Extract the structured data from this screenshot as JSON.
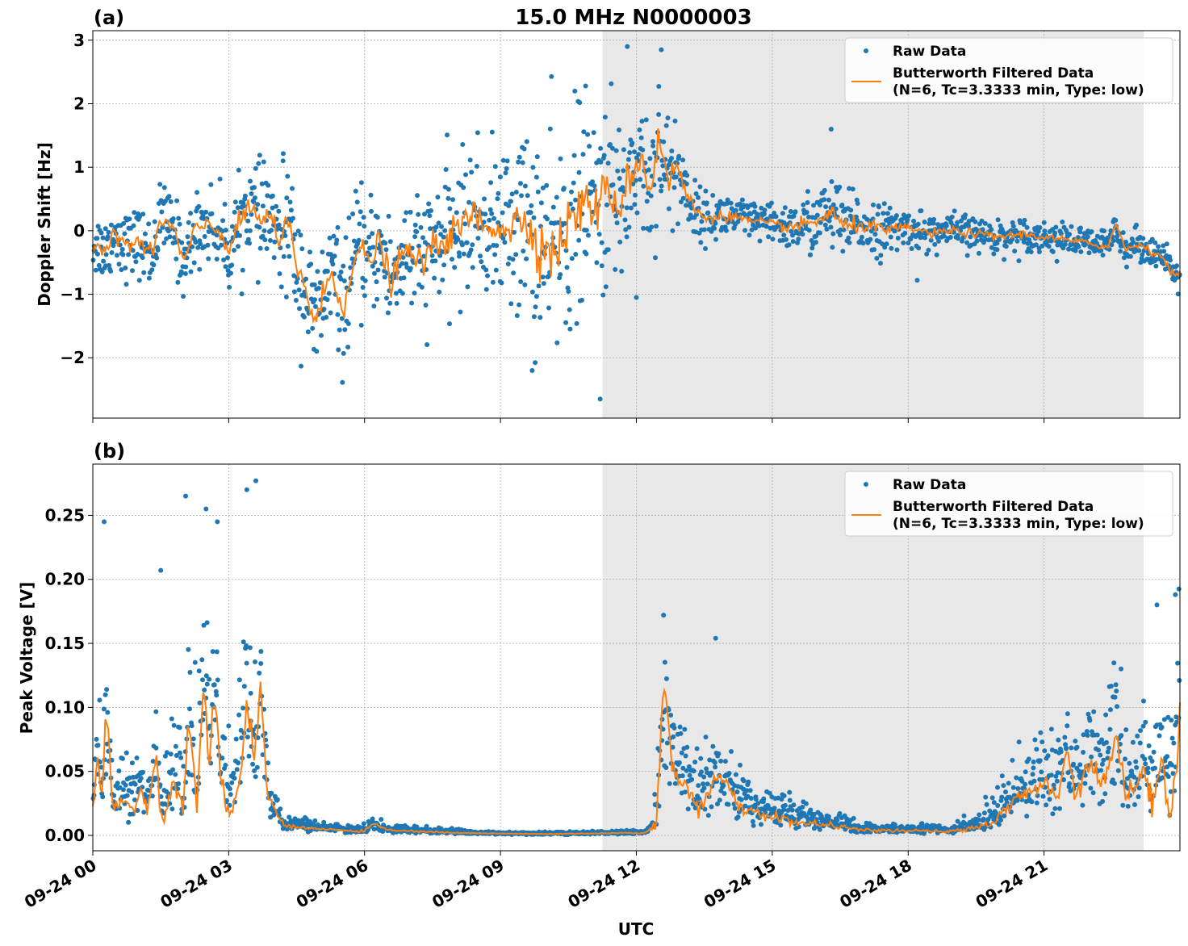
{
  "title": "15.0 MHz N0000003",
  "xlabel": "UTC",
  "x_ticks": [
    "09-24 00",
    "09-24 03",
    "09-24 06",
    "09-24 09",
    "09-24 12",
    "09-24 15",
    "09-24 18",
    "09-24 21"
  ],
  "shaded_region_hours": [
    11.25,
    23.2
  ],
  "legend": {
    "raw": "Raw Data",
    "filtered_line1": "Butterworth Filtered Data",
    "filtered_line2": "(N=6, Tc=3.3333 min, Type: low)"
  },
  "colors": {
    "raw": "#1f77b4",
    "filtered": "#ff7f0e",
    "shade": "#e8e8e8",
    "grid": "#b0b0b0"
  },
  "chart_data": [
    {
      "panel_label": "(a)",
      "type": "scatter",
      "ylabel": "Doppler Shift [Hz]",
      "xlim_hours": [
        0,
        24
      ],
      "ylim": [
        -2.95,
        3.15
      ],
      "y_ticks": [
        3,
        2,
        1,
        0,
        -1,
        -2
      ],
      "y_tick_labels": [
        "3",
        "2",
        "1",
        "0",
        "−1",
        "−2"
      ],
      "grid": true,
      "legend_position": "top-right",
      "filtered_keypoints": [
        [
          0,
          -0.2
        ],
        [
          0.3,
          -0.3
        ],
        [
          0.5,
          -0.05
        ],
        [
          0.8,
          -0.25
        ],
        [
          1.0,
          -0.15
        ],
        [
          1.3,
          -0.4
        ],
        [
          1.5,
          0.2
        ],
        [
          1.8,
          0.0
        ],
        [
          2.0,
          -0.5
        ],
        [
          2.3,
          0.05
        ],
        [
          2.6,
          0.1
        ],
        [
          2.9,
          -0.1
        ],
        [
          3.0,
          -0.4
        ],
        [
          3.1,
          -0.1
        ],
        [
          3.3,
          0.2
        ],
        [
          3.5,
          0.4
        ],
        [
          3.7,
          0.1
        ],
        [
          3.9,
          0.3
        ],
        [
          4.1,
          -0.3
        ],
        [
          4.3,
          0.15
        ],
        [
          4.5,
          -0.5
        ],
        [
          4.7,
          -0.9
        ],
        [
          4.9,
          -1.5
        ],
        [
          5.1,
          -1.0
        ],
        [
          5.3,
          -0.6
        ],
        [
          5.5,
          -1.3
        ],
        [
          5.7,
          -0.6
        ],
        [
          5.9,
          -0.3
        ],
        [
          6.1,
          -0.5
        ],
        [
          6.3,
          -0.2
        ],
        [
          6.6,
          -0.8
        ],
        [
          6.9,
          -0.3
        ],
        [
          7.2,
          -0.5
        ],
        [
          7.5,
          -0.3
        ],
        [
          7.8,
          -0.1
        ],
        [
          8.1,
          0.0
        ],
        [
          8.4,
          0.3
        ],
        [
          8.6,
          0.05
        ],
        [
          8.9,
          0.1
        ],
        [
          9.2,
          0.05
        ],
        [
          9.5,
          0.2
        ],
        [
          9.8,
          -0.1
        ],
        [
          10.1,
          -0.4
        ],
        [
          10.3,
          -0.2
        ],
        [
          10.6,
          0.2
        ],
        [
          10.9,
          0.5
        ],
        [
          11.1,
          0.3
        ],
        [
          11.3,
          0.6
        ],
        [
          11.6,
          0.4
        ],
        [
          11.9,
          0.9
        ],
        [
          12.1,
          1.2
        ],
        [
          12.3,
          0.6
        ],
        [
          12.5,
          1.5
        ],
        [
          12.7,
          0.8
        ],
        [
          12.9,
          1.0
        ],
        [
          13.1,
          0.6
        ],
        [
          13.3,
          0.3
        ],
        [
          13.6,
          0.2
        ],
        [
          14,
          0.25
        ],
        [
          14.5,
          0.15
        ],
        [
          15,
          0.1
        ],
        [
          15.5,
          0.05
        ],
        [
          16,
          0.15
        ],
        [
          16.3,
          0.3
        ],
        [
          16.6,
          0.05
        ],
        [
          17,
          0.1
        ],
        [
          17.5,
          0.0
        ],
        [
          18,
          0.05
        ],
        [
          18.5,
          -0.05
        ],
        [
          19,
          0.0
        ],
        [
          19.5,
          -0.05
        ],
        [
          20,
          -0.1
        ],
        [
          20.5,
          -0.05
        ],
        [
          21,
          -0.1
        ],
        [
          21.5,
          -0.15
        ],
        [
          22,
          -0.2
        ],
        [
          22.4,
          -0.25
        ],
        [
          22.6,
          0.1
        ],
        [
          22.8,
          -0.3
        ],
        [
          23.1,
          -0.2
        ],
        [
          23.3,
          -0.3
        ],
        [
          23.6,
          -0.4
        ],
        [
          23.85,
          -0.7
        ],
        [
          24,
          -0.7
        ]
      ],
      "scatter_noise_keypoints": [
        [
          0,
          0.25
        ],
        [
          3,
          0.3
        ],
        [
          4.5,
          0.5
        ],
        [
          6,
          0.45
        ],
        [
          7.5,
          0.5
        ],
        [
          9,
          0.6
        ],
        [
          10,
          0.9
        ],
        [
          11,
          0.8
        ],
        [
          12,
          0.6
        ],
        [
          12.8,
          0.5
        ],
        [
          13.3,
          0.2
        ],
        [
          15,
          0.15
        ],
        [
          16.3,
          0.3
        ],
        [
          18,
          0.15
        ],
        [
          21,
          0.12
        ],
        [
          24,
          0.12
        ]
      ],
      "outliers": [
        [
          11.2,
          -2.65
        ],
        [
          12.55,
          2.85
        ],
        [
          11.8,
          2.9
        ],
        [
          9.7,
          -2.2
        ],
        [
          12.0,
          -1.05
        ],
        [
          16.3,
          1.6
        ],
        [
          18.2,
          -0.78
        ],
        [
          4.2,
          1.1
        ]
      ]
    },
    {
      "panel_label": "(b)",
      "type": "scatter",
      "ylabel": "Peak Voltage [V]",
      "xlim_hours": [
        0,
        24
      ],
      "ylim": [
        -0.012,
        0.29
      ],
      "y_ticks": [
        0.25,
        0.2,
        0.15,
        0.1,
        0.05,
        0.0
      ],
      "y_tick_labels": [
        "0.25",
        "0.20",
        "0.15",
        "0.10",
        "0.05",
        "0.00"
      ],
      "grid": true,
      "legend_position": "top-right",
      "filtered_keypoints": [
        [
          0,
          0.02
        ],
        [
          0.1,
          0.06
        ],
        [
          0.2,
          0.03
        ],
        [
          0.3,
          0.1
        ],
        [
          0.45,
          0.02
        ],
        [
          0.7,
          0.03
        ],
        [
          0.9,
          0.015
        ],
        [
          1.0,
          0.04
        ],
        [
          1.2,
          0.02
        ],
        [
          1.4,
          0.06
        ],
        [
          1.55,
          0.01
        ],
        [
          1.8,
          0.04
        ],
        [
          2.0,
          0.02
        ],
        [
          2.1,
          0.09
        ],
        [
          2.3,
          0.03
        ],
        [
          2.45,
          0.12
        ],
        [
          2.55,
          0.06
        ],
        [
          2.7,
          0.11
        ],
        [
          2.8,
          0.05
        ],
        [
          2.95,
          0.02
        ],
        [
          3.1,
          0.015
        ],
        [
          3.3,
          0.05
        ],
        [
          3.4,
          0.11
        ],
        [
          3.55,
          0.06
        ],
        [
          3.7,
          0.12
        ],
        [
          3.85,
          0.03
        ],
        [
          4.2,
          0.008
        ],
        [
          5,
          0.005
        ],
        [
          6,
          0.003
        ],
        [
          6.2,
          0.01
        ],
        [
          6.5,
          0.004
        ],
        [
          8,
          0.002
        ],
        [
          10,
          0.001
        ],
        [
          12.2,
          0.002
        ],
        [
          12.45,
          0.01
        ],
        [
          12.6,
          0.12
        ],
        [
          12.8,
          0.05
        ],
        [
          13.1,
          0.04
        ],
        [
          13.4,
          0.02
        ],
        [
          13.8,
          0.05
        ],
        [
          14.3,
          0.02
        ],
        [
          15,
          0.015
        ],
        [
          15.5,
          0.01
        ],
        [
          16.3,
          0.008
        ],
        [
          17,
          0.004
        ],
        [
          19,
          0.003
        ],
        [
          19.9,
          0.01
        ],
        [
          20.1,
          0.02
        ],
        [
          20.5,
          0.03
        ],
        [
          21,
          0.04
        ],
        [
          21.3,
          0.03
        ],
        [
          21.5,
          0.07
        ],
        [
          21.7,
          0.03
        ],
        [
          22.0,
          0.06
        ],
        [
          22.3,
          0.04
        ],
        [
          22.6,
          0.08
        ],
        [
          22.8,
          0.03
        ],
        [
          23.2,
          0.05
        ],
        [
          23.4,
          0.02
        ],
        [
          23.6,
          0.07
        ],
        [
          23.8,
          0.01
        ],
        [
          24,
          0.09
        ]
      ],
      "scatter_noise_keypoints": [
        [
          0,
          0.03
        ],
        [
          1,
          0.03
        ],
        [
          2,
          0.05
        ],
        [
          2.6,
          0.06
        ],
        [
          3.4,
          0.06
        ],
        [
          4.0,
          0.01
        ],
        [
          5,
          0.003
        ],
        [
          6,
          0.004
        ],
        [
          9,
          0.001
        ],
        [
          12.3,
          0.002
        ],
        [
          12.6,
          0.05
        ],
        [
          13.2,
          0.03
        ],
        [
          14.5,
          0.02
        ],
        [
          16,
          0.01
        ],
        [
          17,
          0.005
        ],
        [
          19,
          0.005
        ],
        [
          20,
          0.015
        ],
        [
          21,
          0.03
        ],
        [
          22,
          0.04
        ],
        [
          23,
          0.04
        ],
        [
          24,
          0.06
        ]
      ],
      "outliers": [
        [
          3.6,
          0.277
        ],
        [
          3.4,
          0.27
        ],
        [
          2.05,
          0.265
        ],
        [
          2.5,
          0.255
        ],
        [
          0.25,
          0.245
        ],
        [
          2.75,
          0.245
        ],
        [
          12.6,
          0.172
        ],
        [
          13.75,
          0.154
        ],
        [
          23.9,
          0.188
        ],
        [
          22.7,
          0.13
        ],
        [
          1.5,
          0.207
        ]
      ]
    }
  ]
}
